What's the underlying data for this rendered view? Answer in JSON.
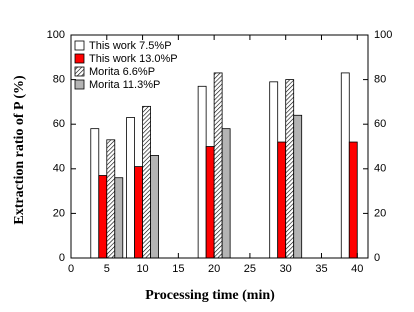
{
  "chart_data": {
    "type": "bar",
    "x_label": "Processing time (min)",
    "y_label": "Extraction ratio of P (%)",
    "x": [
      5,
      10,
      20,
      30,
      40
    ],
    "series": [
      {
        "name": "This work 7.5%P",
        "color": "#ffffff",
        "values": [
          58,
          63,
          77,
          79,
          83
        ]
      },
      {
        "name": "This work 13.0%P",
        "color": "#ff0000",
        "values": [
          37,
          41,
          50,
          52,
          52
        ]
      },
      {
        "name": "Morita 6.6%P",
        "color": "#ffffff",
        "hatch": true,
        "values": [
          53,
          68,
          83,
          80,
          null
        ]
      },
      {
        "name": "Morita 11.3%P",
        "color": "#b4b4b4",
        "values": [
          36,
          46,
          58,
          64,
          null
        ]
      }
    ],
    "xlim": [
      0,
      41.5
    ],
    "xticks": [
      0,
      5,
      10,
      15,
      20,
      25,
      30,
      35,
      40
    ],
    "ylim": [
      0,
      100
    ],
    "yticks": [
      0,
      20,
      40,
      60,
      80,
      100
    ],
    "y2lim": [
      0,
      100
    ],
    "y2ticks": [
      0,
      20,
      40,
      60,
      80,
      100
    ],
    "legend": "upper left"
  }
}
